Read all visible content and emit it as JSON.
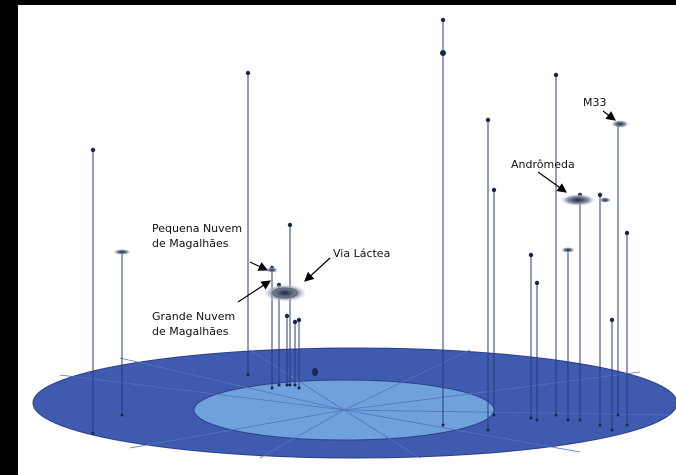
{
  "labels": [
    {
      "lines": [
        "Pequena Nuvem",
        "de Magalhães"
      ]
    },
    {
      "lines": [
        "Via Láctea"
      ]
    },
    {
      "lines": [
        "Grande Nuvem",
        "de Magalhães"
      ]
    },
    {
      "lines": [
        "Andrômeda"
      ]
    },
    {
      "lines": [
        "M33"
      ]
    }
  ]
}
